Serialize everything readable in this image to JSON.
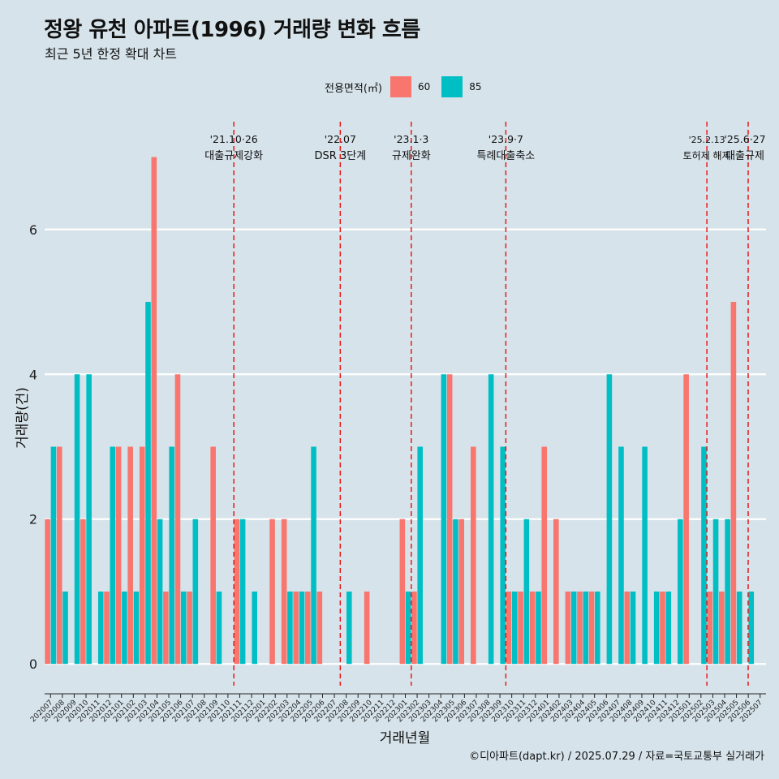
{
  "title": "정왕 유천 아파트(1996) 거래량 변화 흐름",
  "subtitle": "최근 5년 한정 확대 차트",
  "caption": "©디아파트(dapt.kr) / 2025.07.29 / 자료=국토교통부 실거래가",
  "legend": {
    "title": "전용면적(㎡)",
    "items": [
      {
        "label": "60",
        "color": "#f8766d"
      },
      {
        "label": "85",
        "color": "#00bfc4"
      }
    ]
  },
  "chart_data": {
    "type": "bar",
    "title": "정왕 유천 아파트(1996) 거래량 변화 흐름",
    "xlabel": "거래년월",
    "ylabel": "거래량(건)",
    "ylim": [
      -0.3,
      7.6
    ],
    "yticks": [
      0,
      2,
      4,
      6
    ],
    "grid": true,
    "legend_position": "top",
    "categories": [
      "202007",
      "202008",
      "202009",
      "202010",
      "202011",
      "202012",
      "202101",
      "202102",
      "202103",
      "202104",
      "202105",
      "202106",
      "202107",
      "202108",
      "202109",
      "202110",
      "202111",
      "202112",
      "202201",
      "202202",
      "202203",
      "202204",
      "202205",
      "202206",
      "202207",
      "202208",
      "202209",
      "202210",
      "202211",
      "202212",
      "202301",
      "202302",
      "202303",
      "202304",
      "202305",
      "202306",
      "202307",
      "202308",
      "202309",
      "202310",
      "202311",
      "202312",
      "202401",
      "202402",
      "202403",
      "202404",
      "202405",
      "202406",
      "202407",
      "202408",
      "202409",
      "202410",
      "202411",
      "202412",
      "202501",
      "202502",
      "202503",
      "202504",
      "202505",
      "202506",
      "202507"
    ],
    "series": [
      {
        "name": "60",
        "color": "#f8766d",
        "values": [
          2,
          3,
          0,
          2,
          0,
          1,
          3,
          3,
          3,
          7,
          1,
          4,
          1,
          0,
          3,
          0,
          2,
          0,
          0,
          2,
          2,
          1,
          1,
          1,
          0,
          0,
          0,
          1,
          0,
          0,
          2,
          1,
          0,
          0,
          4,
          2,
          3,
          0,
          0,
          1,
          1,
          1,
          3,
          2,
          1,
          1,
          1,
          0,
          0,
          1,
          0,
          0,
          1,
          0,
          4,
          0,
          1,
          1,
          5,
          0,
          0
        ]
      },
      {
        "name": "85",
        "color": "#00bfc4",
        "values": [
          3,
          1,
          4,
          4,
          1,
          3,
          1,
          1,
          5,
          2,
          3,
          1,
          2,
          0,
          1,
          0,
          2,
          1,
          0,
          0,
          1,
          1,
          3,
          0,
          0,
          1,
          0,
          0,
          0,
          0,
          1,
          3,
          0,
          4,
          2,
          0,
          0,
          4,
          3,
          1,
          2,
          1,
          0,
          0,
          1,
          1,
          1,
          4,
          3,
          1,
          3,
          1,
          1,
          2,
          0,
          3,
          2,
          2,
          1,
          1,
          0
        ]
      }
    ],
    "events": [
      {
        "after": "202110",
        "date": "'21.10·26",
        "label": "대출규제강화"
      },
      {
        "after": "202207",
        "date": "'22.07",
        "label": "DSR 3단계"
      },
      {
        "after": "202301",
        "date": "'23.1·3",
        "label": "규제완화"
      },
      {
        "after": "202309",
        "date": "'23.9·7",
        "label": "특례대출축소"
      },
      {
        "after": "202502",
        "date": "'25.2.13",
        "label": "토허제 해제"
      },
      {
        "after": "202506",
        "date": "'25.6·27",
        "label": "대출규제"
      }
    ]
  }
}
